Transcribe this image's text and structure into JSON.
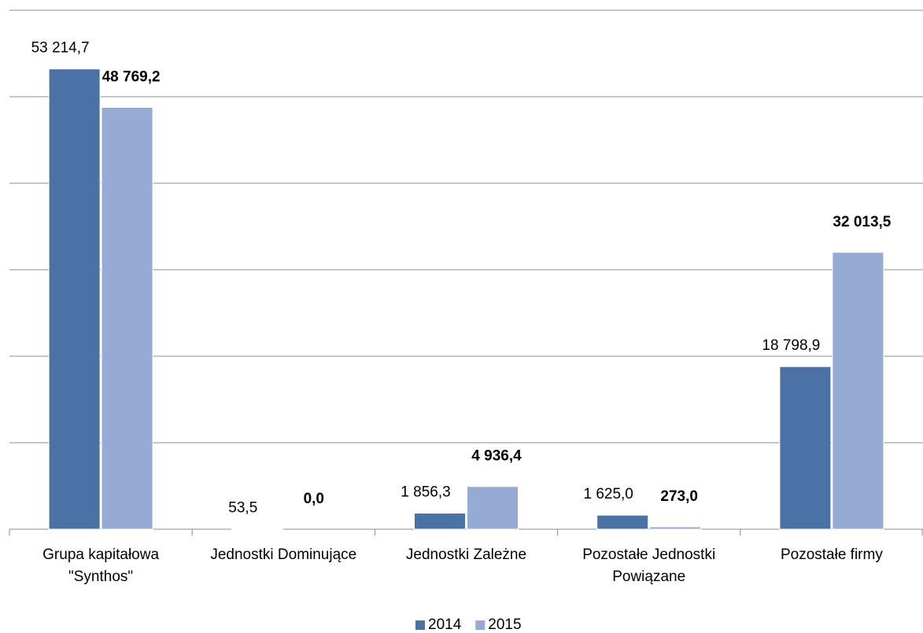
{
  "chart_data": {
    "type": "bar",
    "categories": [
      "Grupa kapitałowa \"Synthos\"",
      "Jednostki Dominujące",
      "Jednostki Zależne",
      "Pozostałe Jednostki Powiązane",
      "Pozostałe firmy"
    ],
    "series": [
      {
        "name": "2014",
        "color": "#4a72a6",
        "values": [
          53214.7,
          53.5,
          1856.3,
          1625.0,
          18798.9
        ],
        "value_labels": [
          "53 214,7",
          "53,5",
          "1 856,3",
          "1 625,0",
          "18 798,9"
        ]
      },
      {
        "name": "2015",
        "color": "#95abd3",
        "values": [
          48769.2,
          0.0,
          4936.4,
          273.0,
          32013.5
        ],
        "value_labels": [
          "48 769,2",
          "0,0",
          "4 936,4",
          "273,0",
          "32 013,5"
        ]
      }
    ],
    "ylim": [
      0,
      60000
    ],
    "yticks": [
      0,
      10000,
      20000,
      30000,
      40000,
      50000,
      60000
    ],
    "grid": true,
    "legend": "bottom"
  }
}
